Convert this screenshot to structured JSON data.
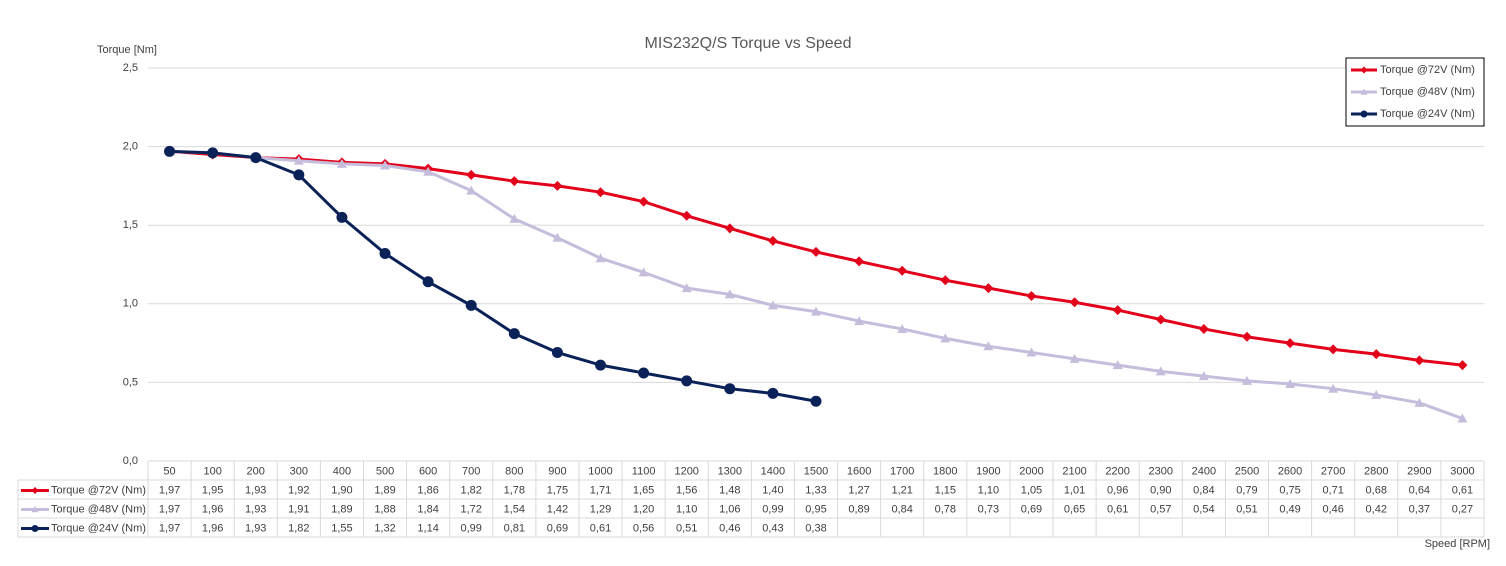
{
  "chart_data": {
    "type": "line",
    "title": "MIS232Q/S Torque vs Speed",
    "y_label": "Torque [Nm]",
    "x_label": "Speed [RPM]",
    "categories": [
      50,
      100,
      200,
      300,
      400,
      500,
      600,
      700,
      800,
      900,
      1000,
      1100,
      1200,
      1300,
      1400,
      1500,
      1600,
      1700,
      1800,
      1900,
      2000,
      2100,
      2200,
      2300,
      2400,
      2500,
      2600,
      2700,
      2800,
      2900,
      3000
    ],
    "ylim": [
      0,
      2.5
    ],
    "yticks": [
      {
        "value": 0,
        "label": "0,0"
      },
      {
        "value": 0.5,
        "label": "0,5"
      },
      {
        "value": 1,
        "label": "1,0"
      },
      {
        "value": 1.5,
        "label": "1,5"
      },
      {
        "value": 2,
        "label": "2,0"
      },
      {
        "value": 2.5,
        "label": "2,5"
      }
    ],
    "grid": true,
    "legend": "top-right",
    "data_table": true,
    "series": [
      {
        "name": "Torque @72V (Nm)",
        "color": "#e3001b",
        "marker": "diamond",
        "values": [
          1.97,
          1.95,
          1.93,
          1.92,
          1.9,
          1.89,
          1.86,
          1.82,
          1.78,
          1.75,
          1.71,
          1.65,
          1.56,
          1.48,
          1.4,
          1.33,
          1.27,
          1.21,
          1.15,
          1.1,
          1.05,
          1.01,
          0.96,
          0.9,
          0.84,
          0.79,
          0.75,
          0.71,
          0.68,
          0.64,
          0.61
        ],
        "value_labels": [
          "1,97",
          "1,95",
          "1,93",
          "1,92",
          "1,90",
          "1,89",
          "1,86",
          "1,82",
          "1,78",
          "1,75",
          "1,71",
          "1,65",
          "1,56",
          "1,48",
          "1,40",
          "1,33",
          "1,27",
          "1,21",
          "1,15",
          "1,10",
          "1,05",
          "1,01",
          "0,96",
          "0,90",
          "0,84",
          "0,79",
          "0,75",
          "0,71",
          "0,68",
          "0,64",
          "0,61"
        ]
      },
      {
        "name": "Torque @48V (Nm)",
        "color": "#c5bddb",
        "marker": "triangle",
        "values": [
          1.97,
          1.96,
          1.93,
          1.91,
          1.89,
          1.88,
          1.84,
          1.72,
          1.54,
          1.42,
          1.29,
          1.2,
          1.1,
          1.06,
          0.99,
          0.95,
          0.89,
          0.84,
          0.78,
          0.73,
          0.69,
          0.65,
          0.61,
          0.57,
          0.54,
          0.51,
          0.49,
          0.46,
          0.42,
          0.37,
          0.27
        ],
        "value_labels": [
          "1,97",
          "1,96",
          "1,93",
          "1,91",
          "1,89",
          "1,88",
          "1,84",
          "1,72",
          "1,54",
          "1,42",
          "1,29",
          "1,20",
          "1,10",
          "1,06",
          "0,99",
          "0,95",
          "0,89",
          "0,84",
          "0,78",
          "0,73",
          "0,69",
          "0,65",
          "0,61",
          "0,57",
          "0,54",
          "0,51",
          "0,49",
          "0,46",
          "0,42",
          "0,37",
          "0,27"
        ]
      },
      {
        "name": "Torque @24V (Nm)",
        "color": "#0b2259",
        "marker": "circle",
        "values": [
          1.97,
          1.96,
          1.93,
          1.82,
          1.55,
          1.32,
          1.14,
          0.99,
          0.81,
          0.69,
          0.61,
          0.56,
          0.51,
          0.46,
          0.43,
          0.38,
          null,
          null,
          null,
          null,
          null,
          null,
          null,
          null,
          null,
          null,
          null,
          null,
          null,
          null,
          null
        ],
        "value_labels": [
          "1,97",
          "1,96",
          "1,93",
          "1,82",
          "1,55",
          "1,32",
          "1,14",
          "0,99",
          "0,81",
          "0,69",
          "0,61",
          "0,56",
          "0,51",
          "0,46",
          "0,43",
          "0,38",
          null,
          null,
          null,
          null,
          null,
          null,
          null,
          null,
          null,
          null,
          null,
          null,
          null,
          null,
          null
        ]
      }
    ]
  }
}
